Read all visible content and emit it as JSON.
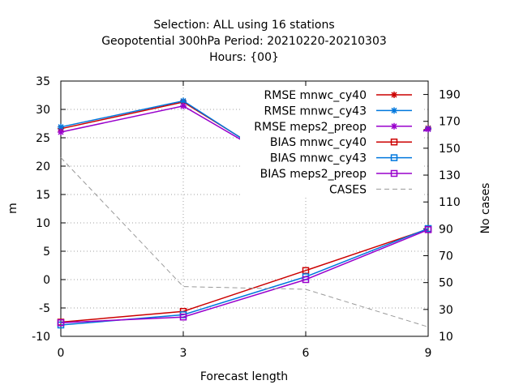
{
  "chart_data": {
    "type": "line",
    "title_lines": [
      "Selection: ALL using    16 stations",
      "Geopotential 300hPa   Period: 20210220-20210303",
      "Hours: {00}"
    ],
    "xlabel": "Forecast length",
    "ylabel": "m",
    "y2label": "No cases",
    "x": [
      0,
      3,
      6,
      9
    ],
    "xlim": [
      0,
      9
    ],
    "ylim": [
      -10,
      35
    ],
    "y2lim": [
      10,
      200
    ],
    "xticks": [
      0,
      3,
      6,
      9
    ],
    "yticks": [
      -10,
      -5,
      0,
      5,
      10,
      15,
      20,
      25,
      30,
      35
    ],
    "y2ticks": [
      10,
      30,
      50,
      70,
      90,
      110,
      130,
      150,
      170,
      190
    ],
    "grid": true,
    "legend_position": "top-right",
    "series": [
      {
        "name": "RMSE mnwc_cy40",
        "axis": "y",
        "color": "#cc0000",
        "marker": "plus-cross",
        "values": [
          26.6,
          31.3,
          17.9,
          26.7
        ]
      },
      {
        "name": "RMSE mnwc_cy43",
        "axis": "y",
        "color": "#0077dd",
        "marker": "plus-cross",
        "values": [
          26.9,
          31.5,
          17.6,
          26.6
        ]
      },
      {
        "name": "RMSE meps2_preop",
        "axis": "y",
        "color": "#9900cc",
        "marker": "plus-cross",
        "values": [
          26.0,
          30.6,
          18.0,
          26.5
        ]
      },
      {
        "name": "BIAS mnwc_cy40",
        "axis": "y",
        "color": "#cc0000",
        "marker": "square",
        "values": [
          -7.5,
          -5.6,
          1.6,
          8.9
        ]
      },
      {
        "name": "BIAS mnwc_cy43",
        "axis": "y",
        "color": "#0077dd",
        "marker": "square",
        "values": [
          -8.0,
          -6.2,
          0.5,
          9.0
        ]
      },
      {
        "name": "BIAS meps2_preop",
        "axis": "y",
        "color": "#9900cc",
        "marker": "square",
        "values": [
          -7.6,
          -6.6,
          0.0,
          8.8
        ]
      },
      {
        "name": "CASES",
        "axis": "y2",
        "color": "#999999",
        "dashed": true,
        "values": [
          143,
          47,
          45,
          17
        ]
      }
    ]
  }
}
